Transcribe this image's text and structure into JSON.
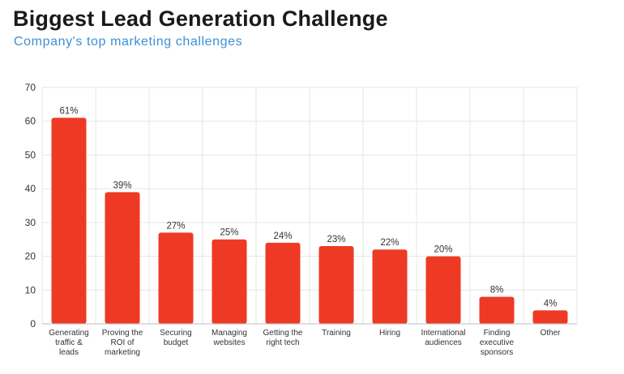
{
  "chart_data": {
    "type": "bar",
    "title": "Biggest Lead Generation Challenge",
    "subtitle": "Company's top marketing challenges",
    "categories": [
      "Generating traffic & leads",
      "Proving the ROI of marketing",
      "Securing budget",
      "Managing websites",
      "Getting the right tech",
      "Training",
      "Hiring",
      "International audiences",
      "Finding executive sponsors",
      "Other"
    ],
    "category_lines": [
      [
        "Generating",
        "traffic &",
        "leads"
      ],
      [
        "Proving the",
        "ROI of",
        "marketing"
      ],
      [
        "Securing",
        "budget"
      ],
      [
        "Managing",
        "websites"
      ],
      [
        "Getting the",
        "right tech"
      ],
      [
        "Training"
      ],
      [
        "Hiring"
      ],
      [
        "International",
        "audiences"
      ],
      [
        "Finding",
        "executive",
        "sponsors"
      ],
      [
        "Other"
      ]
    ],
    "values": [
      61,
      39,
      27,
      25,
      24,
      23,
      22,
      20,
      8,
      4
    ],
    "data_labels": [
      "61%",
      "39%",
      "27%",
      "25%",
      "24%",
      "23%",
      "22%",
      "20%",
      "8%",
      "4%"
    ],
    "yticks": [
      0,
      10,
      20,
      30,
      40,
      50,
      60,
      70
    ],
    "ylim": [
      0,
      70
    ],
    "xlabel": "",
    "ylabel": "",
    "grid": true,
    "legend": "none",
    "colors": {
      "bar": "#ee3a24",
      "grid": "#e6e6e6",
      "axis": "#bdbdbd"
    }
  }
}
